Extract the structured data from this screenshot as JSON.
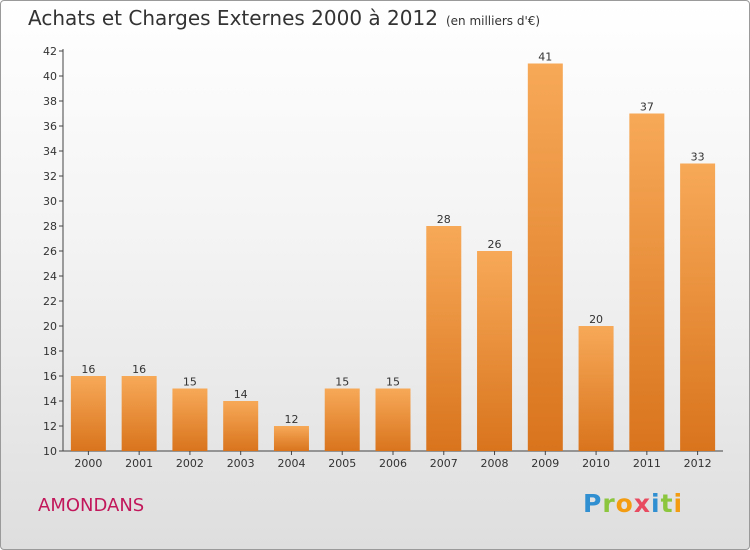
{
  "title": "Achats et Charges Externes 2000 à 2012",
  "unit_note": "(en milliers d'€)",
  "commune": "AMONDANS",
  "logo": {
    "letters": [
      "P",
      "r",
      "o",
      "x",
      "i",
      "t",
      "i"
    ],
    "colors": [
      "#2f8fd1",
      "#8cc63f",
      "#f39c12",
      "#e84a5f",
      "#2f8fd1",
      "#8cc63f",
      "#f39c12"
    ]
  },
  "colors": {
    "bar_top": "#f7a958",
    "bar_bottom": "#d9741d",
    "commune": "#c2185b"
  },
  "chart_data": {
    "type": "bar",
    "categories": [
      "2000",
      "2001",
      "2002",
      "2003",
      "2004",
      "2005",
      "2006",
      "2007",
      "2008",
      "2009",
      "2010",
      "2011",
      "2012"
    ],
    "values": [
      16,
      16,
      15,
      14,
      12,
      15,
      15,
      28,
      26,
      41,
      20,
      37,
      33
    ],
    "ylim": [
      10,
      42
    ],
    "yticks": [
      10,
      12,
      14,
      16,
      18,
      20,
      22,
      24,
      26,
      28,
      30,
      32,
      34,
      36,
      38,
      40,
      42
    ],
    "grid": false,
    "data_labels": true
  }
}
